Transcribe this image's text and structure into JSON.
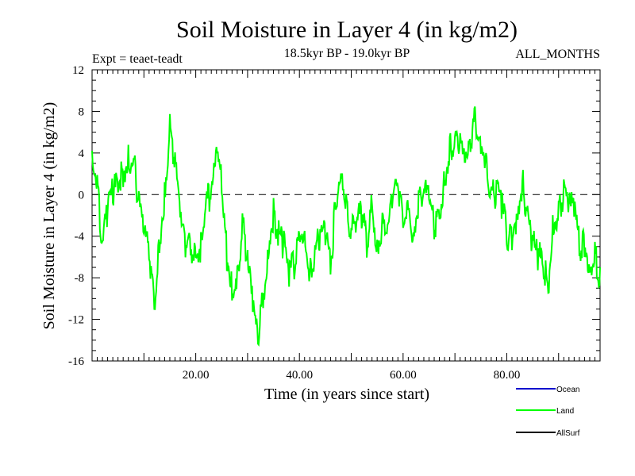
{
  "chart_data": {
    "type": "line",
    "title": "Soil Moisture in Layer 4 (in kg/m2)",
    "subtitle": "18.5kyr BP - 19.0kyr BP",
    "experiment": "Expt = teaet-teadt",
    "period": "ALL_MONTHS",
    "xlabel": "Time (in years since start)",
    "ylabel": "Soil Moisture in Layer 4 (in kg/m2)",
    "xlim": [
      0,
      98
    ],
    "ylim": [
      -16,
      12
    ],
    "x_ticks": [
      20,
      40,
      60,
      80
    ],
    "x_tick_labels": [
      "20.00",
      "40.00",
      "60.00",
      "80.00"
    ],
    "y_ticks": [
      -16,
      -12,
      -8,
      -4,
      0,
      4,
      8,
      12
    ],
    "y_tick_labels": [
      "-16",
      "-12",
      "-8",
      "-4",
      "0",
      "4",
      "8",
      "12"
    ],
    "reference_line": 0,
    "legend_position": "bottom-right",
    "series": [
      {
        "name": "Land",
        "color": "#00ff00",
        "x": [
          0,
          1,
          2,
          3,
          4,
          5,
          6,
          7,
          8,
          9,
          10,
          11,
          12,
          13,
          14,
          15,
          16,
          17,
          18,
          19,
          20,
          21,
          22,
          23,
          24,
          25,
          26,
          27,
          28,
          29,
          30,
          31,
          32,
          33,
          34,
          35,
          36,
          37,
          38,
          39,
          40,
          41,
          42,
          43,
          44,
          45,
          46,
          47,
          48,
          49,
          50,
          51,
          52,
          53,
          54,
          55,
          56,
          57,
          58,
          59,
          60,
          61,
          62,
          63,
          64,
          65,
          66,
          67,
          68,
          69,
          70,
          71,
          72,
          73,
          74,
          75,
          76,
          77,
          78,
          79,
          80,
          81,
          82,
          83,
          84,
          85,
          86,
          87,
          88,
          89,
          90,
          91,
          92,
          93,
          94,
          95,
          96,
          97,
          98
        ],
        "values": [
          5,
          2,
          -4,
          -1,
          1,
          2,
          3,
          4,
          4,
          0,
          -3,
          -5,
          -10,
          -4,
          1,
          7,
          4,
          -2,
          -4,
          -4,
          -5,
          -4,
          0,
          1,
          4,
          2,
          -5,
          -8,
          -7,
          -2,
          -6,
          -10,
          -13,
          -9,
          -4,
          -1,
          -3,
          -4,
          -7,
          -6,
          -3,
          -2,
          -7,
          -5,
          -3,
          -3,
          -6,
          0,
          4,
          0,
          -3,
          -2,
          -1,
          -4,
          0,
          -4,
          -2,
          -3,
          0,
          2,
          -2,
          0,
          -3,
          0,
          1,
          0,
          -2,
          -1,
          2,
          5,
          6,
          6,
          3,
          6,
          8,
          6,
          4,
          1,
          1,
          0,
          -3,
          -3,
          -1,
          2,
          -1,
          -4,
          -5,
          -6,
          -8,
          -2,
          -1,
          1,
          0,
          -1,
          -4,
          -4,
          -6,
          -5,
          -7
        ]
      },
      {
        "name": "Ocean",
        "color": "#0000cd",
        "values": []
      },
      {
        "name": "AllSurf",
        "color": "#000000",
        "values": []
      }
    ]
  }
}
